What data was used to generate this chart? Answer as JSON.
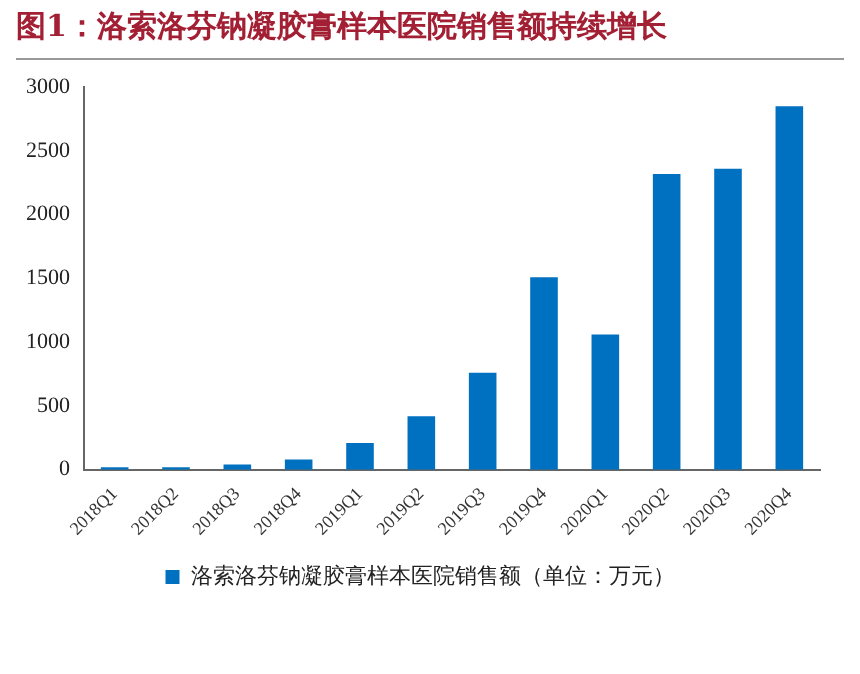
{
  "chart_data": {
    "type": "bar",
    "title": "图1：洛索洛芬钠凝胶膏样本医院销售额持续增长",
    "categories": [
      "2018Q1",
      "2018Q2",
      "2018Q3",
      "2018Q4",
      "2019Q1",
      "2019Q2",
      "2019Q3",
      "2019Q4",
      "2020Q1",
      "2020Q2",
      "2020Q3",
      "2020Q4"
    ],
    "series": [
      {
        "name": "洛索洛芬钠凝胶膏样本医院销售额（单位：万元）",
        "color": "#0070c0",
        "values": [
          20,
          20,
          40,
          80,
          210,
          420,
          760,
          1510,
          1060,
          2320,
          2360,
          2850
        ]
      }
    ],
    "ylim": [
      0,
      3000
    ],
    "yticks": [
      0,
      500,
      1000,
      1500,
      2000,
      2500,
      3000
    ],
    "grid": false,
    "legend": "bottom"
  }
}
